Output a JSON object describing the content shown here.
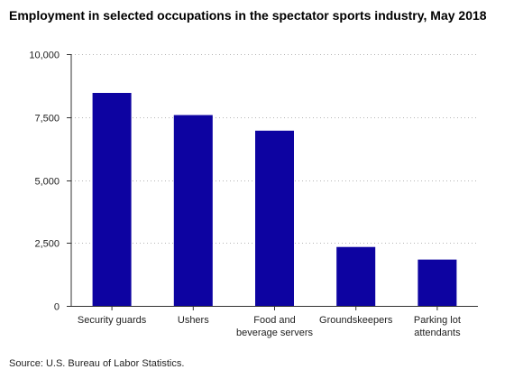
{
  "chart_data": {
    "type": "bar",
    "title": "Employment in selected occupations in the spectator sports industry, May 2018",
    "categories": [
      "Security guards",
      "Ushers",
      "Food and beverage servers",
      "Groundskeepers",
      "Parking lot attendants"
    ],
    "category_lines": [
      [
        "Security guards"
      ],
      [
        "Ushers"
      ],
      [
        "Food and",
        "beverage servers"
      ],
      [
        "Groundskeepers"
      ],
      [
        "Parking lot",
        "attendants"
      ]
    ],
    "values": [
      8460,
      7580,
      6960,
      2340,
      1840
    ],
    "ylim": [
      0,
      10000
    ],
    "yticks": [
      0,
      2500,
      5000,
      7500,
      10000
    ],
    "ytick_labels": [
      "0",
      "2,500",
      "5,000",
      "7,500",
      "10,000"
    ],
    "xlabel": "",
    "ylabel": "",
    "grid": true,
    "bar_color": "#0d03a1",
    "source": "Source: U.S. Bureau of Labor Statistics."
  }
}
